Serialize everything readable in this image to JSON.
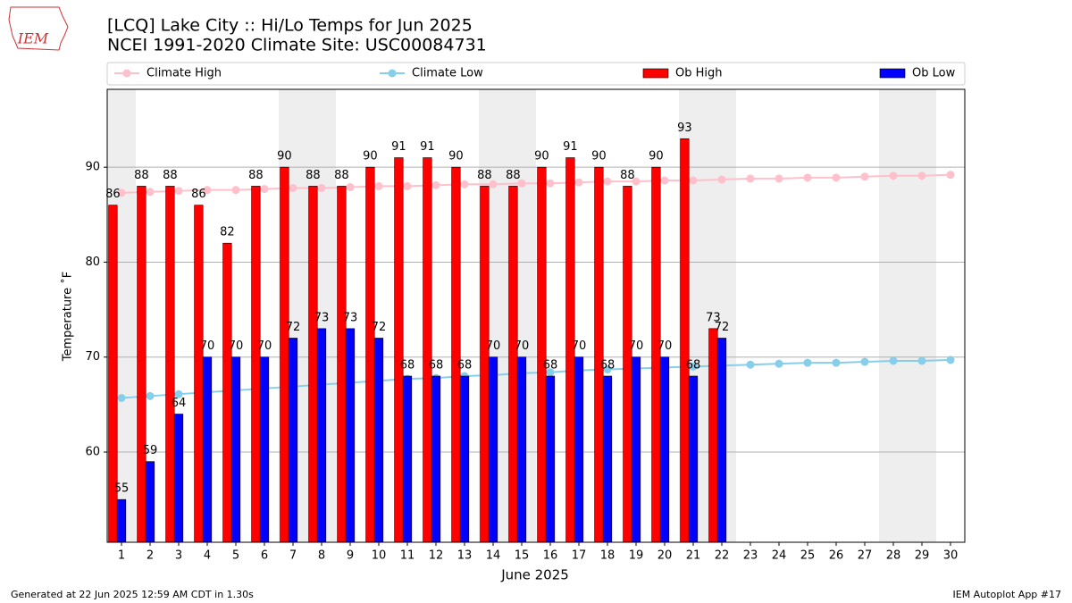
{
  "logo_text": "IEM",
  "footer_left": "Generated at 22 Jun 2025 12:59 AM CDT in 1.30s",
  "footer_right": "IEM Autoplot App #17",
  "chart_data": {
    "type": "bar",
    "title": "[LCQ] Lake City :: Hi/Lo Temps for Jun 2025",
    "subtitle": "NCEI 1991-2020 Climate Site: USC00084731",
    "x_label": "June 2025",
    "y_label": "Temperature ˚F",
    "x": [
      1,
      2,
      3,
      4,
      5,
      6,
      7,
      8,
      9,
      10,
      11,
      12,
      13,
      14,
      15,
      16,
      17,
      18,
      19,
      20,
      21,
      22,
      23,
      24,
      25,
      26,
      27,
      28,
      29,
      30
    ],
    "xlim": [
      0.5,
      30.5
    ],
    "ylim": [
      50.5,
      98.2
    ],
    "yticks": [
      60,
      70,
      80,
      90
    ],
    "grid": true,
    "shaded_days": [
      1,
      7,
      8,
      14,
      15,
      21,
      22,
      28,
      29
    ],
    "shade_color": "#eeeeee",
    "series": [
      {
        "name": "Climate High",
        "type": "line",
        "color": "#ffc0cb",
        "values": [
          87.3,
          87.4,
          87.5,
          87.6,
          87.6,
          87.7,
          87.8,
          87.8,
          87.9,
          88.0,
          88.0,
          88.1,
          88.2,
          88.2,
          88.3,
          88.3,
          88.4,
          88.5,
          88.5,
          88.6,
          88.6,
          88.7,
          88.8,
          88.8,
          88.9,
          88.9,
          89.0,
          89.1,
          89.1,
          89.2
        ]
      },
      {
        "name": "Climate Low",
        "type": "line",
        "color": "#87ceeb",
        "values": [
          65.7,
          65.9,
          66.1,
          66.3,
          66.5,
          66.7,
          66.9,
          67.1,
          67.3,
          67.5,
          67.7,
          67.8,
          68.0,
          68.1,
          68.3,
          68.4,
          68.6,
          68.7,
          68.8,
          68.9,
          69.0,
          69.1,
          69.2,
          69.3,
          69.4,
          69.4,
          69.5,
          69.6,
          69.6,
          69.7
        ]
      },
      {
        "name": "Ob High",
        "type": "bar",
        "color": "#ff0000",
        "values": [
          86,
          88,
          88,
          86,
          82,
          88,
          90,
          88,
          88,
          90,
          91,
          91,
          90,
          88,
          88,
          90,
          91,
          90,
          88,
          90,
          93,
          73,
          null,
          null,
          null,
          null,
          null,
          null,
          null,
          null
        ]
      },
      {
        "name": "Ob Low",
        "type": "bar",
        "color": "#0000ff",
        "values": [
          55,
          59,
          64,
          70,
          70,
          70,
          72,
          73,
          73,
          72,
          68,
          68,
          68,
          70,
          70,
          68,
          70,
          68,
          70,
          70,
          68,
          72,
          null,
          null,
          null,
          null,
          null,
          null,
          null,
          null
        ]
      }
    ]
  }
}
